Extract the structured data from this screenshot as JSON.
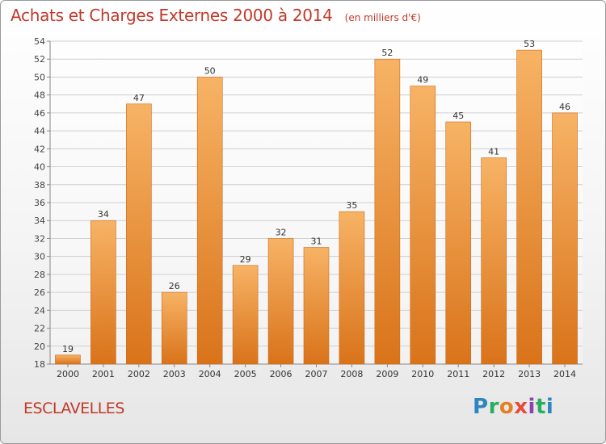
{
  "title": "Achats et Charges Externes 2000 à 2014",
  "unit": "(en milliers d'€)",
  "commune": "ESCLAVELLES",
  "logo": {
    "letters": [
      "P",
      "r",
      "o",
      "x",
      "i",
      "t",
      "i"
    ],
    "colors": [
      "#2e86c1",
      "#27ae60",
      "#e67e22",
      "#e74c3c",
      "#8e44ad",
      "#27ae60",
      "#2e86c1"
    ]
  },
  "colors": {
    "bar": "#f0922f",
    "bar_light": "#f7b365",
    "bar_dark": "#d9731a",
    "grid": "#cfcfcf",
    "title": "#c0392b"
  },
  "chart_data": {
    "type": "bar",
    "categories": [
      "2000",
      "2001",
      "2002",
      "2003",
      "2004",
      "2005",
      "2006",
      "2007",
      "2008",
      "2009",
      "2010",
      "2011",
      "2012",
      "2013",
      "2014"
    ],
    "values": [
      19,
      34,
      47,
      26,
      50,
      29,
      32,
      31,
      35,
      52,
      49,
      45,
      41,
      53,
      46
    ],
    "yticks": [
      18,
      20,
      22,
      24,
      26,
      28,
      30,
      32,
      34,
      36,
      38,
      40,
      42,
      44,
      46,
      48,
      50,
      52,
      54
    ],
    "ylim": [
      18,
      54
    ],
    "grid": true,
    "data_labels": true
  }
}
